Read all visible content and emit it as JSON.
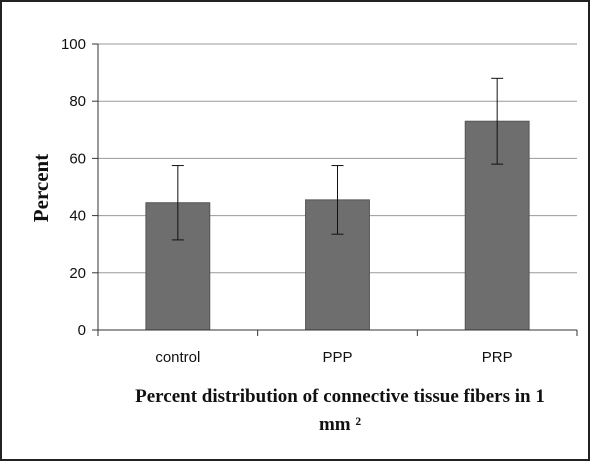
{
  "chart_data": {
    "type": "bar",
    "categories": [
      "control",
      "PPP",
      "PRP"
    ],
    "values": [
      44.5,
      45.5,
      73
    ],
    "errors": [
      13,
      12,
      15
    ],
    "ylabel": "Percent",
    "xlabel_lines": [
      "Percent distribution of connective tissue fibers in 1",
      "mm ²"
    ],
    "ylim": [
      0,
      100
    ],
    "yticks": [
      0,
      20,
      40,
      60,
      80,
      100
    ],
    "grid": true,
    "legend": "none",
    "bar_color": "#6e6e6e",
    "grid_color": "#9a9a9a",
    "error_bar_color": "#111111"
  }
}
